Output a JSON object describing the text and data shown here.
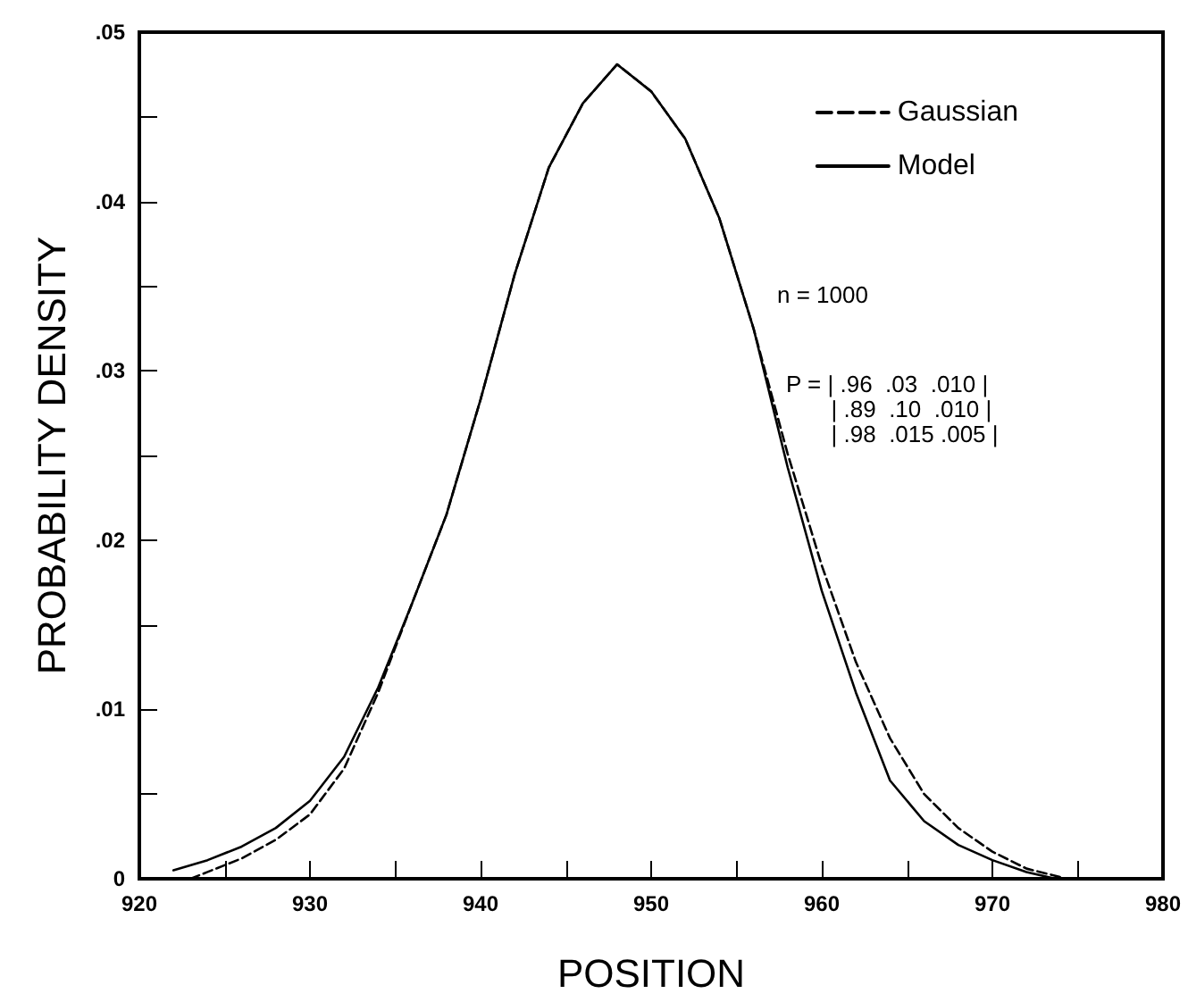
{
  "chart_data": {
    "type": "line",
    "xlabel": "POSITION",
    "ylabel": "PROBABILITY DENSITY",
    "series": [
      {
        "name": "Gaussian",
        "color": "#000000",
        "line_style": "dashed",
        "x": [
          923,
          924,
          926,
          928,
          930,
          932,
          934,
          936,
          938,
          940,
          942,
          944,
          946,
          948,
          950,
          952,
          954,
          956,
          958,
          960,
          962,
          964,
          966,
          968,
          970,
          972,
          974
        ],
        "values": [
          0,
          0.0004,
          0.0012,
          0.0023,
          0.0038,
          0.0065,
          0.011,
          0.0163,
          0.0215,
          0.0283,
          0.0357,
          0.042,
          0.0458,
          0.0481,
          0.0465,
          0.0437,
          0.039,
          0.0325,
          0.0251,
          0.0185,
          0.0128,
          0.0083,
          0.005,
          0.003,
          0.0016,
          0.0006,
          0.0001
        ]
      },
      {
        "name": "Model",
        "color": "#000000",
        "line_style": "solid",
        "x": [
          922,
          924,
          926,
          928,
          930,
          932,
          934,
          936,
          938,
          940,
          942,
          944,
          946,
          948,
          950,
          952,
          954,
          956,
          958,
          960,
          962,
          964,
          966,
          968,
          970,
          972,
          973.7
        ],
        "values": [
          0.0005,
          0.0011,
          0.0019,
          0.003,
          0.0046,
          0.0072,
          0.0113,
          0.0163,
          0.0215,
          0.0283,
          0.0357,
          0.042,
          0.0458,
          0.0481,
          0.0465,
          0.0437,
          0.039,
          0.0325,
          0.0243,
          0.017,
          0.011,
          0.0058,
          0.0034,
          0.002,
          0.0011,
          0.0004,
          0
        ]
      }
    ],
    "xlim": [
      920,
      980
    ],
    "xticks": [
      920,
      {
        "value": 925,
        "label": null
      },
      930,
      {
        "value": 935,
        "label": null
      },
      940,
      {
        "value": 945,
        "label": null
      },
      950,
      {
        "value": 955,
        "label": null
      },
      960,
      {
        "value": 965,
        "label": null
      },
      970,
      {
        "value": 975,
        "label": null
      },
      980
    ],
    "ylim": [
      0,
      0.05
    ],
    "yticks": [
      0,
      {
        "value": 0.005,
        "label": null
      },
      {
        "value": 0.01,
        "label": ".01"
      },
      {
        "value": 0.015,
        "label": null
      },
      {
        "value": 0.02,
        "label": ".02"
      },
      {
        "value": 0.025,
        "label": null
      },
      {
        "value": 0.03,
        "label": ".03"
      },
      {
        "value": 0.035,
        "label": null
      },
      {
        "value": 0.04,
        "label": ".04"
      },
      {
        "value": 0.045,
        "label": null
      },
      {
        "value": 0.05,
        "label": ".05"
      }
    ],
    "annotations": [
      "n = 1000",
      "P = | .96  .03  .010 |\n       | .89  .10  .010 |\n       | .98  .015 .005 |"
    ],
    "legend": "top right",
    "marker": "none",
    "grid": false
  }
}
